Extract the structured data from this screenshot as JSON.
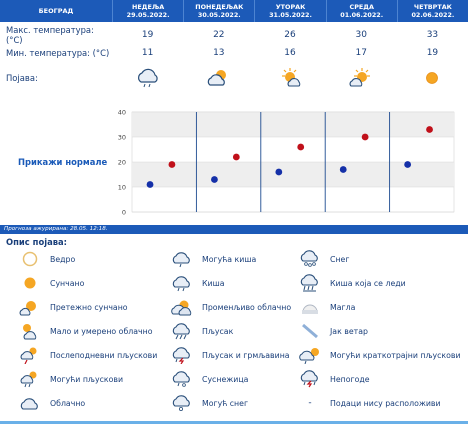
{
  "header": {
    "city": "БЕОГРАД",
    "days": [
      {
        "name": "НЕДЕЉА",
        "date": "29.05.2022."
      },
      {
        "name": "ПОНЕДЕЉАК",
        "date": "30.05.2022."
      },
      {
        "name": "УТОРАК",
        "date": "31.05.2022."
      },
      {
        "name": "СРЕДА",
        "date": "01.06.2022."
      },
      {
        "name": "ЧЕТВРТАК",
        "date": "02.06.2022."
      }
    ]
  },
  "rows": {
    "max_label": "Макс. температура: (°C)",
    "max_values": [
      "19",
      "22",
      "26",
      "30",
      "33"
    ],
    "min_label": "Мин. температура: (°C)",
    "min_values": [
      "11",
      "13",
      "16",
      "17",
      "19"
    ],
    "phenomenon_label": "Појава:",
    "phenomenon_icons": [
      "cloud-rain-icon",
      "partly-cloudy-icon",
      "mostly-sunny-icon",
      "mostly-sunny-icon",
      "sun-icon"
    ]
  },
  "chart": {
    "show_normals": "Прикажи нормале",
    "y_ticks": [
      "0",
      "10",
      "20",
      "30",
      "40"
    ]
  },
  "chart_data": {
    "type": "scatter",
    "categories": [
      "29.05.2022.",
      "30.05.2022.",
      "31.05.2022.",
      "01.06.2022.",
      "02.06.2022."
    ],
    "series": [
      {
        "values": [
          19,
          22,
          26,
          30,
          33
        ],
        "color": "#c0101a"
      },
      {
        "values": [
          11,
          13,
          16,
          17,
          19
        ],
        "color": "#1530a8"
      }
    ],
    "ylim": [
      0,
      40
    ],
    "grid": true
  },
  "updated": "Прогноза ажурирана:  28.05. 12:18.",
  "legend": {
    "title": "Опис појава:",
    "items": [
      {
        "label": "Ведро",
        "icon": "clear-night-icon"
      },
      {
        "label": "Сунчано",
        "icon": "sun-icon"
      },
      {
        "label": "Претежно сунчано",
        "icon": "mostly-sunny-icon"
      },
      {
        "label": "Мало и умерено облачно",
        "icon": "partly-cloudy-icon"
      },
      {
        "label": "Послеподневни пљускови",
        "icon": "afternoon-showers-icon"
      },
      {
        "label": "Могући пљускови",
        "icon": "possible-showers-icon"
      },
      {
        "label": "Облачно",
        "icon": "cloud-icon"
      },
      {
        "label": "Могућа киша",
        "icon": "possible-rain-icon"
      },
      {
        "label": "Киша",
        "icon": "rain-icon"
      },
      {
        "label": "Променљиво облачно",
        "icon": "variable-cloudy-icon"
      },
      {
        "label": "Пљусак",
        "icon": "shower-icon"
      },
      {
        "label": "Пљусак и грмљавина",
        "icon": "thunderstorm-icon"
      },
      {
        "label": "Суснежица",
        "icon": "sleet-icon"
      },
      {
        "label": "Могућ снег",
        "icon": "possible-snow-icon"
      },
      {
        "label": "Снег",
        "icon": "snow-icon"
      },
      {
        "label": "Киша која се леди",
        "icon": "freezing-rain-icon"
      },
      {
        "label": "Магла",
        "icon": "fog-icon"
      },
      {
        "label": "Јак ветар",
        "icon": "wind-icon"
      },
      {
        "label": "Могући краткотрајни пљускови",
        "icon": "brief-showers-icon"
      },
      {
        "label": "Непогоде",
        "icon": "storm-icon"
      },
      {
        "label": "Подаци нису расположиви",
        "icon": "dash"
      }
    ]
  }
}
